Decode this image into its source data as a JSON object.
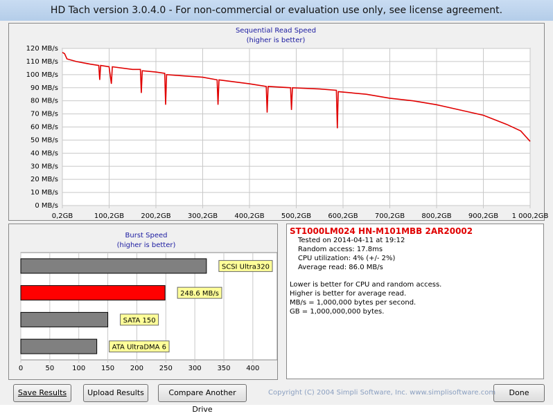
{
  "window": {
    "title": "HD Tach version 3.0.4.0  - For non-commercial or evaluation use only, see license agreement."
  },
  "read_chart": {
    "type": "line",
    "title": "Sequential Read Speed",
    "subtitle": "(higher is better)",
    "color": "#e00000",
    "x": [
      0.2,
      5,
      10,
      30,
      60,
      78,
      80,
      82,
      100,
      105,
      107,
      150,
      167,
      169,
      171,
      200,
      219,
      221,
      223,
      260,
      300,
      331,
      333,
      335,
      400,
      436,
      438,
      440,
      488,
      490,
      492,
      550,
      586,
      588,
      590,
      650,
      700,
      750,
      800,
      850,
      900,
      950,
      980,
      1000.2
    ],
    "values": [
      117,
      116,
      112,
      110,
      108,
      107,
      96,
      107,
      106,
      93,
      106,
      104,
      104,
      86,
      103,
      102,
      101,
      77,
      100,
      99,
      98,
      96,
      77,
      96,
      93,
      91,
      71,
      91,
      90,
      73,
      90,
      89,
      88,
      59,
      87,
      85,
      82,
      80,
      77,
      73,
      69,
      62,
      57,
      49
    ],
    "xlim": [
      0.2,
      1000.2
    ],
    "xticks": [
      {
        "value": 0.2,
        "label": "0,2GB"
      },
      {
        "value": 100.2,
        "label": "100,2GB"
      },
      {
        "value": 200.2,
        "label": "200,2GB"
      },
      {
        "value": 300.2,
        "label": "300,2GB"
      },
      {
        "value": 400.2,
        "label": "400,2GB"
      },
      {
        "value": 500.2,
        "label": "500,2GB"
      },
      {
        "value": 600.2,
        "label": "600,2GB"
      },
      {
        "value": 700.2,
        "label": "700,2GB"
      },
      {
        "value": 800.2,
        "label": "800,2GB"
      },
      {
        "value": 900.2,
        "label": "900,2GB"
      },
      {
        "value": 1000.2,
        "label": "1 000,2GB"
      }
    ],
    "ylim": [
      0,
      120
    ],
    "yticks": [
      {
        "value": 0,
        "label": "0 MB/s"
      },
      {
        "value": 10,
        "label": "10 MB/s"
      },
      {
        "value": 20,
        "label": "20 MB/s"
      },
      {
        "value": 30,
        "label": "30 MB/s"
      },
      {
        "value": 40,
        "label": "40 MB/s"
      },
      {
        "value": 50,
        "label": "50 MB/s"
      },
      {
        "value": 60,
        "label": "60 MB/s"
      },
      {
        "value": 70,
        "label": "70 MB/s"
      },
      {
        "value": 80,
        "label": "80 MB/s"
      },
      {
        "value": 90,
        "label": "90 MB/s"
      },
      {
        "value": 100,
        "label": "100 MB/s"
      },
      {
        "value": 110,
        "label": "110 MB/s"
      },
      {
        "value": 120,
        "label": "120 MB/s"
      }
    ],
    "grid": true
  },
  "burst_chart": {
    "type": "bar",
    "title": "Burst Speed",
    "subtitle": "(higher is better)",
    "bars": [
      {
        "label": "SCSI Ultra320",
        "value": 320,
        "color": "#808080"
      },
      {
        "label": "248.6 MB/s",
        "value": 248.6,
        "color": "#ff0000"
      },
      {
        "label": "SATA 150",
        "value": 150,
        "color": "#808080"
      },
      {
        "label": "ATA UltraDMA 6",
        "value": 131,
        "color": "#808080"
      }
    ],
    "xlim": [
      0,
      442
    ],
    "xticks": [
      0,
      50,
      100,
      150,
      200,
      250,
      300,
      350,
      400
    ],
    "grid": true
  },
  "info": {
    "drive": "ST1000LM024 HN-M101MBB 2AR20002",
    "lines": [
      "Tested on 2014-04-11 at 19:12",
      "Random access: 17.8ms",
      "CPU utilization: 4% (+/- 2%)",
      "Average read: 86.0 MB/s"
    ],
    "notes": [
      "Lower is better for CPU and random access.",
      "Higher is better for average read.",
      "MB/s = 1,000,000 bytes per second.",
      "GB = 1,000,000,000 bytes."
    ]
  },
  "buttons": [
    "Save Results",
    "Upload Results",
    "Compare Another Drive",
    "Done"
  ],
  "copyright": "Copyright (C) 2004 Simpli Software, Inc. www.simplisoftware.com"
}
